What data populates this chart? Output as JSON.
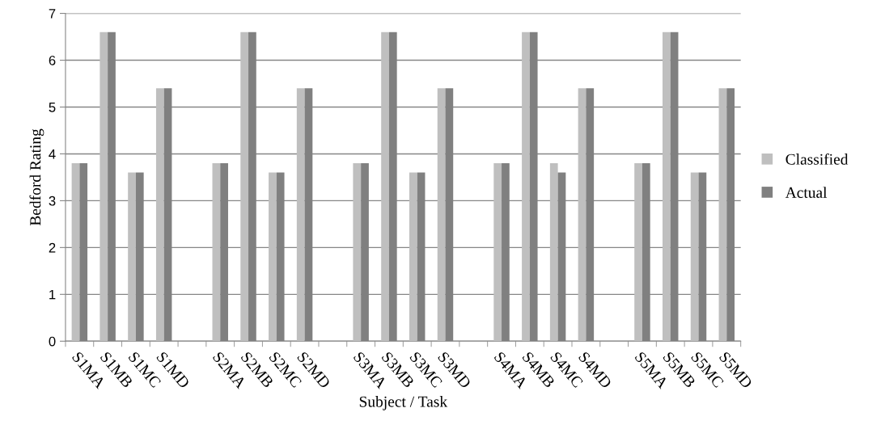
{
  "chart_data": {
    "type": "bar",
    "xlabel": "Subject / Task",
    "ylabel": "Bedford Rating",
    "categories": [
      "S1MA",
      "S1MB",
      "S1MC",
      "S1MD",
      null,
      "S2MA",
      "S2MB",
      "S2MC",
      "S2MD",
      null,
      "S3MA",
      "S3MB",
      "S3MC",
      "S3MD",
      null,
      "S4MA",
      "S4MB",
      "S4MC",
      "S4MD",
      null,
      "S5MA",
      "S5MB",
      "S5MC",
      "S5MD"
    ],
    "series": [
      {
        "name": "Classified",
        "color": "#bfbfbf",
        "values": [
          3.8,
          6.6,
          3.6,
          5.4,
          null,
          3.8,
          6.6,
          3.6,
          5.4,
          null,
          3.8,
          6.6,
          3.6,
          5.4,
          null,
          3.8,
          6.6,
          3.8,
          5.4,
          null,
          3.8,
          6.6,
          3.6,
          5.4
        ]
      },
      {
        "name": "Actual",
        "color": "#808080",
        "values": [
          3.8,
          6.6,
          3.6,
          5.4,
          null,
          3.8,
          6.6,
          3.6,
          5.4,
          null,
          3.8,
          6.6,
          3.6,
          5.4,
          null,
          3.8,
          6.6,
          3.6,
          5.4,
          null,
          3.8,
          6.6,
          3.6,
          5.4
        ]
      }
    ],
    "ylim": [
      0,
      7
    ],
    "yticks": [
      0,
      1,
      2,
      3,
      4,
      5,
      6,
      7
    ],
    "grid": "y",
    "legend": "right"
  }
}
